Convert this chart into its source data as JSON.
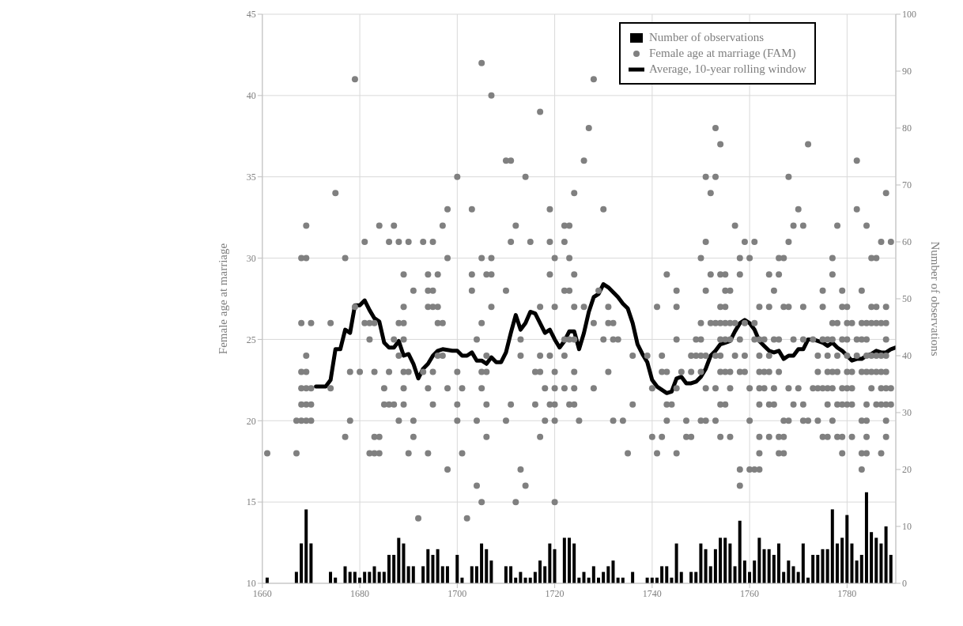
{
  "chart_data": {
    "type": "scatter",
    "ylabel": "Female age at marriage",
    "y2label": "Number of observations",
    "xlim": [
      1660,
      1790
    ],
    "xticks": [
      1660,
      1680,
      1700,
      1720,
      1740,
      1760,
      1780
    ],
    "ylim": [
      10,
      45
    ],
    "yticks": [
      10,
      15,
      20,
      25,
      30,
      35,
      40,
      45
    ],
    "y2lim": [
      0,
      100
    ],
    "y2ticks": [
      0,
      10,
      20,
      30,
      40,
      50,
      60,
      70,
      80,
      90,
      100
    ],
    "grid": true,
    "legend": "top",
    "series": [
      {
        "name": "Number of observations",
        "type": "bar",
        "axis": "y2",
        "color": "#000000",
        "x": [
          1661,
          1667,
          1668,
          1669,
          1670,
          1674,
          1675,
          1677,
          1678,
          1679,
          1680,
          1681,
          1682,
          1683,
          1684,
          1685,
          1686,
          1687,
          1688,
          1689,
          1690,
          1691,
          1693,
          1694,
          1695,
          1696,
          1697,
          1698,
          1700,
          1701,
          1703,
          1704,
          1705,
          1706,
          1707,
          1710,
          1711,
          1712,
          1713,
          1714,
          1715,
          1716,
          1717,
          1718,
          1719,
          1720,
          1722,
          1723,
          1724,
          1725,
          1726,
          1727,
          1728,
          1729,
          1730,
          1731,
          1732,
          1733,
          1734,
          1736,
          1739,
          1740,
          1741,
          1742,
          1743,
          1744,
          1745,
          1746,
          1748,
          1749,
          1750,
          1751,
          1752,
          1753,
          1754,
          1755,
          1756,
          1757,
          1758,
          1759,
          1760,
          1761,
          1762,
          1763,
          1764,
          1765,
          1766,
          1767,
          1768,
          1769,
          1770,
          1771,
          1772,
          1773,
          1774,
          1775,
          1776,
          1777,
          1778,
          1779,
          1780,
          1781,
          1782,
          1783,
          1784,
          1785,
          1786,
          1787,
          1788,
          1789
        ],
        "values": [
          1,
          2,
          7,
          13,
          7,
          2,
          1,
          3,
          2,
          2,
          1,
          2,
          2,
          3,
          2,
          2,
          5,
          5,
          8,
          7,
          3,
          3,
          3,
          6,
          5,
          6,
          3,
          3,
          5,
          1,
          3,
          3,
          7,
          6,
          4,
          3,
          3,
          1,
          2,
          1,
          1,
          2,
          4,
          3,
          7,
          6,
          8,
          8,
          7,
          1,
          2,
          1,
          3,
          1,
          2,
          3,
          4,
          1,
          1,
          2,
          1,
          1,
          1,
          3,
          3,
          1,
          7,
          2,
          2,
          2,
          7,
          6,
          3,
          6,
          8,
          8,
          7,
          3,
          11,
          4,
          2,
          4,
          8,
          6,
          6,
          5,
          7,
          2,
          4,
          3,
          2,
          7,
          1,
          5,
          5,
          6,
          6,
          13,
          7,
          8,
          12,
          7,
          4,
          5,
          16,
          9,
          8,
          7,
          10,
          5
        ]
      },
      {
        "name": "Female age at marriage (FAM)",
        "color": "#808080",
        "marker": "circle",
        "x": [
          1661,
          1667,
          1667,
          1668,
          1668,
          1668,
          1668,
          1668,
          1668,
          1669,
          1669,
          1669,
          1669,
          1669,
          1669,
          1669,
          1670,
          1670,
          1670,
          1670,
          1674,
          1674,
          1675,
          1677,
          1677,
          1678,
          1678,
          1679,
          1679,
          1680,
          1681,
          1681,
          1682,
          1682,
          1682,
          1683,
          1683,
          1683,
          1683,
          1684,
          1684,
          1684,
          1685,
          1685,
          1686,
          1686,
          1686,
          1687,
          1687,
          1687,
          1688,
          1688,
          1688,
          1688,
          1689,
          1689,
          1689,
          1689,
          1689,
          1689,
          1689,
          1690,
          1690,
          1690,
          1691,
          1691,
          1691,
          1692,
          1693,
          1693,
          1694,
          1694,
          1694,
          1694,
          1694,
          1695,
          1695,
          1695,
          1695,
          1695,
          1696,
          1696,
          1696,
          1696,
          1697,
          1697,
          1697,
          1698,
          1698,
          1698,
          1698,
          1700,
          1700,
          1700,
          1700,
          1701,
          1701,
          1702,
          1703,
          1703,
          1703,
          1704,
          1704,
          1704,
          1705,
          1705,
          1705,
          1705,
          1705,
          1705,
          1706,
          1706,
          1706,
          1706,
          1706,
          1707,
          1707,
          1707,
          1707,
          1710,
          1710,
          1710,
          1711,
          1711,
          1711,
          1712,
          1712,
          1713,
          1713,
          1713,
          1714,
          1714,
          1715,
          1716,
          1716,
          1717,
          1717,
          1717,
          1717,
          1717,
          1718,
          1718,
          1719,
          1719,
          1719,
          1719,
          1719,
          1720,
          1720,
          1720,
          1720,
          1720,
          1720,
          1720,
          1722,
          1722,
          1722,
          1722,
          1722,
          1722,
          1723,
          1723,
          1723,
          1723,
          1723,
          1724,
          1724,
          1724,
          1724,
          1724,
          1724,
          1724,
          1725,
          1726,
          1726,
          1727,
          1728,
          1728,
          1728,
          1729,
          1730,
          1730,
          1731,
          1731,
          1731,
          1732,
          1732,
          1732,
          1733,
          1734,
          1735,
          1736,
          1736,
          1739,
          1740,
          1740,
          1741,
          1741,
          1742,
          1742,
          1742,
          1743,
          1743,
          1743,
          1743,
          1744,
          1745,
          1745,
          1745,
          1745,
          1745,
          1746,
          1747,
          1747,
          1748,
          1748,
          1748,
          1749,
          1749,
          1750,
          1750,
          1750,
          1750,
          1750,
          1750,
          1751,
          1751,
          1751,
          1751,
          1751,
          1751,
          1752,
          1752,
          1752,
          1753,
          1753,
          1753,
          1753,
          1753,
          1753,
          1754,
          1754,
          1754,
          1754,
          1754,
          1754,
          1754,
          1754,
          1754,
          1755,
          1755,
          1755,
          1755,
          1755,
          1755,
          1755,
          1756,
          1756,
          1756,
          1756,
          1756,
          1756,
          1757,
          1757,
          1757,
          1758,
          1758,
          1758,
          1758,
          1758,
          1758,
          1759,
          1759,
          1759,
          1759,
          1760,
          1760,
          1760,
          1760,
          1761,
          1761,
          1761,
          1761,
          1762,
          1762,
          1762,
          1762,
          1762,
          1762,
          1762,
          1762,
          1762,
          1763,
          1763,
          1763,
          1764,
          1764,
          1764,
          1764,
          1764,
          1764,
          1765,
          1765,
          1765,
          1765,
          1766,
          1766,
          1766,
          1766,
          1766,
          1766,
          1767,
          1767,
          1767,
          1767,
          1767,
          1768,
          1768,
          1768,
          1768,
          1768,
          1769,
          1769,
          1769,
          1770,
          1770,
          1771,
          1771,
          1771,
          1771,
          1771,
          1772,
          1772,
          1773,
          1773,
          1774,
          1774,
          1774,
          1774,
          1775,
          1775,
          1775,
          1775,
          1775,
          1776,
          1776,
          1776,
          1776,
          1776,
          1776,
          1777,
          1777,
          1777,
          1777,
          1777,
          1777,
          1777,
          1778,
          1778,
          1778,
          1778,
          1778,
          1778,
          1779,
          1779,
          1779,
          1779,
          1779,
          1779,
          1779,
          1780,
          1780,
          1780,
          1780,
          1780,
          1780,
          1780,
          1781,
          1781,
          1781,
          1781,
          1781,
          1782,
          1782,
          1782,
          1782,
          1783,
          1783,
          1783,
          1783,
          1783,
          1783,
          1783,
          1784,
          1784,
          1784,
          1784,
          1784,
          1784,
          1784,
          1784,
          1784,
          1785,
          1785,
          1785,
          1785,
          1785,
          1785,
          1786,
          1786,
          1786,
          1786,
          1786,
          1786,
          1787,
          1787,
          1787,
          1787,
          1787,
          1787,
          1787,
          1788,
          1788,
          1788,
          1788,
          1788,
          1788,
          1788,
          1788,
          1788,
          1788,
          1789,
          1789,
          1789
        ],
        "values": [
          18,
          20,
          18,
          30,
          26,
          23,
          22,
          21,
          20,
          32,
          30,
          24,
          23,
          22,
          21,
          20,
          26,
          22,
          21,
          20,
          26,
          22,
          34,
          30,
          19,
          23,
          20,
          41,
          27,
          23,
          31,
          26,
          26,
          25,
          18,
          26,
          23,
          19,
          18,
          32,
          19,
          18,
          22,
          21,
          31,
          23,
          21,
          32,
          25,
          21,
          31,
          26,
          24,
          20,
          29,
          27,
          26,
          25,
          23,
          22,
          21,
          31,
          23,
          18,
          28,
          20,
          19,
          14,
          31,
          23,
          29,
          28,
          27,
          22,
          18,
          31,
          28,
          27,
          23,
          21,
          29,
          27,
          26,
          24,
          32,
          26,
          24,
          33,
          30,
          22,
          17,
          35,
          23,
          21,
          20,
          22,
          18,
          14,
          33,
          29,
          28,
          25,
          20,
          16,
          42,
          30,
          26,
          23,
          22,
          15,
          29,
          24,
          23,
          21,
          19,
          40,
          30,
          29,
          27,
          36,
          28,
          20,
          36,
          31,
          21,
          32,
          15,
          25,
          24,
          17,
          35,
          16,
          31,
          23,
          21,
          39,
          27,
          24,
          23,
          19,
          22,
          20,
          33,
          31,
          29,
          24,
          21,
          30,
          27,
          23,
          22,
          21,
          20,
          15,
          32,
          31,
          28,
          25,
          24,
          22,
          32,
          30,
          28,
          25,
          21,
          34,
          29,
          27,
          25,
          23,
          22,
          21,
          20,
          36,
          27,
          38,
          41,
          26,
          22,
          28,
          33,
          25,
          27,
          26,
          23,
          26,
          25,
          20,
          25,
          20,
          18,
          24,
          21,
          24,
          22,
          19,
          27,
          18,
          24,
          23,
          19,
          29,
          23,
          21,
          20,
          21,
          28,
          27,
          25,
          22,
          18,
          23,
          20,
          19,
          24,
          23,
          19,
          25,
          24,
          30,
          26,
          25,
          24,
          23,
          20,
          35,
          31,
          28,
          24,
          22,
          20,
          34,
          29,
          26,
          38,
          35,
          26,
          24,
          22,
          20,
          37,
          29,
          27,
          26,
          25,
          24,
          23,
          21,
          19,
          29,
          28,
          27,
          26,
          25,
          23,
          21,
          28,
          26,
          25,
          23,
          22,
          19,
          32,
          26,
          24,
          30,
          29,
          25,
          23,
          17,
          16,
          31,
          26,
          24,
          23,
          30,
          22,
          20,
          17,
          31,
          26,
          25,
          17,
          27,
          25,
          24,
          23,
          22,
          21,
          19,
          18,
          17,
          25,
          23,
          22,
          29,
          27,
          24,
          23,
          21,
          19,
          28,
          25,
          22,
          21,
          30,
          29,
          25,
          23,
          19,
          18,
          30,
          27,
          20,
          19,
          18,
          35,
          31,
          27,
          22,
          20,
          32,
          25,
          21,
          33,
          22,
          32,
          27,
          25,
          21,
          20,
          37,
          20,
          25,
          22,
          24,
          23,
          22,
          20,
          28,
          27,
          25,
          22,
          19,
          25,
          24,
          23,
          22,
          21,
          19,
          30,
          29,
          26,
          25,
          23,
          22,
          20,
          32,
          26,
          24,
          23,
          21,
          19,
          28,
          27,
          25,
          22,
          21,
          19,
          18,
          27,
          26,
          25,
          24,
          23,
          22,
          21,
          26,
          23,
          22,
          21,
          19,
          36,
          33,
          25,
          24,
          28,
          26,
          25,
          23,
          20,
          18,
          17,
          32,
          26,
          25,
          24,
          23,
          21,
          20,
          19,
          18,
          30,
          27,
          26,
          24,
          23,
          22,
          30,
          27,
          26,
          24,
          23,
          21,
          31,
          26,
          24,
          23,
          22,
          21,
          18,
          34,
          27,
          26,
          25,
          24,
          23,
          22,
          21,
          20,
          19,
          31,
          22,
          21
        ]
      },
      {
        "name": "Average, 10-year rolling window",
        "type": "line",
        "color": "#000000",
        "marker": "none",
        "line_style": "solid",
        "x": [
          1671,
          1673,
          1674,
          1675,
          1676,
          1677,
          1678,
          1679,
          1680,
          1681,
          1682,
          1683,
          1684,
          1685,
          1686,
          1687,
          1688,
          1689,
          1690,
          1691,
          1692,
          1693,
          1694,
          1695,
          1696,
          1697,
          1699,
          1700,
          1701,
          1702,
          1703,
          1704,
          1705,
          1706,
          1707,
          1708,
          1709,
          1710,
          1711,
          1712,
          1713,
          1714,
          1715,
          1716,
          1718,
          1719,
          1720,
          1721,
          1722,
          1723,
          1724,
          1725,
          1726,
          1727,
          1728,
          1729,
          1730,
          1731,
          1732,
          1733,
          1734,
          1735,
          1736,
          1737,
          1738,
          1739,
          1740,
          1741,
          1743,
          1744,
          1745,
          1746,
          1747,
          1748,
          1749,
          1750,
          1751,
          1752,
          1753,
          1754,
          1755,
          1756,
          1757,
          1758,
          1759,
          1760,
          1761,
          1762,
          1763,
          1764,
          1765,
          1766,
          1767,
          1768,
          1769,
          1770,
          1771,
          1772,
          1773,
          1774,
          1775,
          1776,
          1777,
          1778,
          1779,
          1780,
          1781,
          1782,
          1783,
          1784,
          1785,
          1786,
          1787,
          1788,
          1789,
          1790
        ],
        "values": [
          22.1,
          22.1,
          22.5,
          24.4,
          24.4,
          25.6,
          25.4,
          27.1,
          27.1,
          27.4,
          26.8,
          26.3,
          26.1,
          24.8,
          24.5,
          24.5,
          24.9,
          24.0,
          24.1,
          23.5,
          22.6,
          23.2,
          23.5,
          24.0,
          24.3,
          24.4,
          24.3,
          24.3,
          24.0,
          24.0,
          24.2,
          23.7,
          23.7,
          23.5,
          23.9,
          23.6,
          23.6,
          24.2,
          25.4,
          26.5,
          25.6,
          26.0,
          26.7,
          26.6,
          25.4,
          25.6,
          25.0,
          24.5,
          24.9,
          25.5,
          25.5,
          24.4,
          25.4,
          26.7,
          27.6,
          27.8,
          28.4,
          28.2,
          27.9,
          27.6,
          27.2,
          26.9,
          26.0,
          24.7,
          24.1,
          23.6,
          22.5,
          22.1,
          21.7,
          21.8,
          22.6,
          22.7,
          22.3,
          22.3,
          22.4,
          22.7,
          23.2,
          24.0,
          24.3,
          24.7,
          24.8,
          24.9,
          25.5,
          26.0,
          26.2,
          26.0,
          25.6,
          24.9,
          24.6,
          24.3,
          24.2,
          24.3,
          23.8,
          24.0,
          24.0,
          24.4,
          24.4,
          25.0,
          25.0,
          24.9,
          24.8,
          24.6,
          24.8,
          24.5,
          24.3,
          24.0,
          23.7,
          23.8,
          23.8,
          24.0,
          24.1,
          24.3,
          24.2,
          24.2,
          24.4,
          24.5
        ]
      }
    ]
  }
}
